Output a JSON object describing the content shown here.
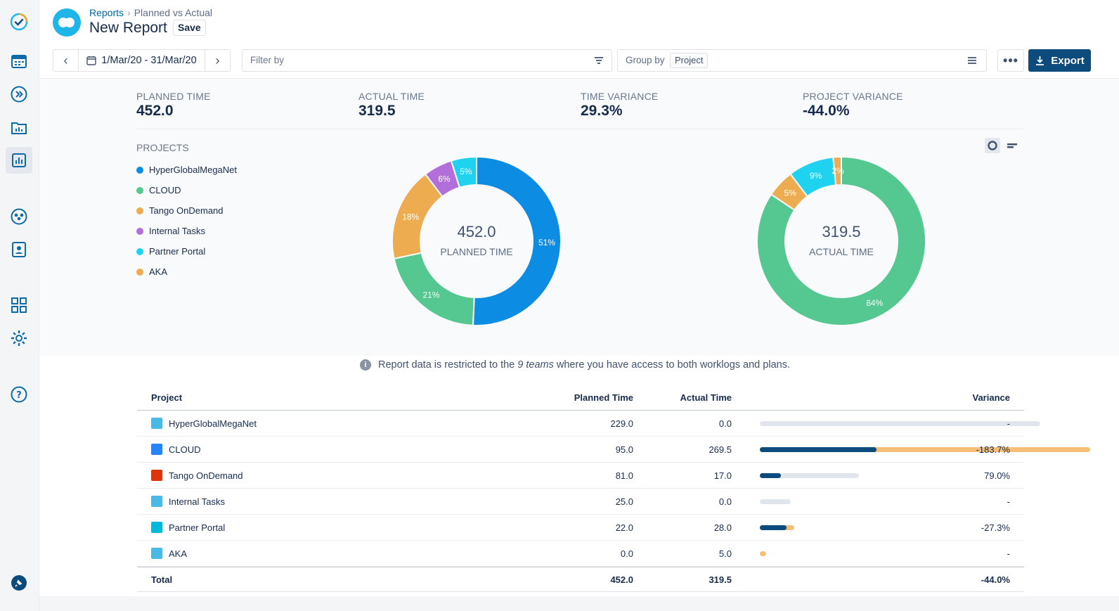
{
  "colors": {
    "accent": "#0c4b7c",
    "blue": "#0c8ce3",
    "green": "#55c891",
    "orange": "#eeac50",
    "purple": "#b36fd9",
    "cyan": "#1fd3f0",
    "bar_track": "#e1e6ed",
    "bar_actual": "#0c4b7c",
    "bar_over": "#f5bf78"
  },
  "sidebar": {
    "items": [
      {
        "icon": "tempo-logo-icon"
      },
      {
        "icon": "calendar-icon"
      },
      {
        "icon": "forward-icon"
      },
      {
        "icon": "folder-chart-icon"
      },
      {
        "icon": "reports-icon"
      },
      {
        "icon": "teams-icon"
      },
      {
        "icon": "contact-icon"
      },
      {
        "icon": "apps-grid-icon"
      },
      {
        "icon": "gear-icon"
      },
      {
        "icon": "help-icon"
      },
      {
        "icon": "pin-icon"
      }
    ]
  },
  "header": {
    "breadcrumb": {
      "parent": "Reports",
      "sep": "›",
      "current": "Planned vs Actual"
    },
    "title": "New Report",
    "save_label": "Save"
  },
  "toolbar": {
    "prev": "‹",
    "next": "›",
    "date_range": "1/Mar/20 - 31/Mar/20",
    "filter_placeholder": "Filter by",
    "group_label": "Group by",
    "group_value": "Project",
    "more": "•••",
    "export_label": "Export"
  },
  "kpis": [
    {
      "label": "Planned Time",
      "value": "452.0"
    },
    {
      "label": "Actual Time",
      "value": "319.5"
    },
    {
      "label": "Time Variance",
      "value": "29.3%"
    },
    {
      "label": "Project Variance",
      "value": "-44.0%"
    }
  ],
  "legend": {
    "title": "PROJECTS",
    "items": [
      {
        "name": "HyperGlobalMegaNet",
        "color": "#0c8ce3"
      },
      {
        "name": "CLOUD",
        "color": "#55c891"
      },
      {
        "name": "Tango OnDemand",
        "color": "#eeac50"
      },
      {
        "name": "Internal Tasks",
        "color": "#b36fd9"
      },
      {
        "name": "Partner Portal",
        "color": "#1fd3f0"
      },
      {
        "name": "AKA",
        "color": "#eeac50"
      }
    ]
  },
  "chart_data": [
    {
      "type": "pie",
      "variant": "donut",
      "center_value": "452.0",
      "center_label": "PLANNED TIME",
      "categories": [
        "HyperGlobalMegaNet",
        "CLOUD",
        "Tango OnDemand",
        "Internal Tasks",
        "Partner Portal",
        "AKA"
      ],
      "values": [
        229.0,
        95.0,
        81.0,
        25.0,
        22.0,
        0.0
      ],
      "labels": [
        "51%",
        "21%",
        "18%",
        "6%",
        "5%",
        ""
      ],
      "colors": [
        "#0c8ce3",
        "#55c891",
        "#eeac50",
        "#b36fd9",
        "#1fd3f0",
        "#eeac50"
      ]
    },
    {
      "type": "pie",
      "variant": "donut",
      "center_value": "319.5",
      "center_label": "ACTUAL TIME",
      "categories": [
        "HyperGlobalMegaNet",
        "CLOUD",
        "Tango OnDemand",
        "Internal Tasks",
        "Partner Portal",
        "AKA"
      ],
      "values": [
        0.0,
        269.5,
        17.0,
        0.0,
        28.0,
        5.0
      ],
      "labels": [
        "",
        "84%",
        "5%",
        "",
        "9%",
        "2%"
      ],
      "colors": [
        "#0c8ce3",
        "#55c891",
        "#eeac50",
        "#b36fd9",
        "#1fd3f0",
        "#eeac50"
      ]
    }
  ],
  "info": {
    "prefix": "Report data is restricted to the ",
    "emphasis": "9 teams",
    "suffix": " where you have access to both worklogs and plans."
  },
  "table": {
    "headers": {
      "project": "Project",
      "planned": "Planned Time",
      "actual": "Actual Time",
      "variance": "Variance"
    },
    "rows": [
      {
        "project": "HyperGlobalMegaNet",
        "planned": "229.0",
        "actual": "0.0",
        "variance": "-",
        "icon_color": "#4bb9e6",
        "planned_n": 229.0,
        "actual_n": 0.0
      },
      {
        "project": "CLOUD",
        "planned": "95.0",
        "actual": "269.5",
        "variance": "-183.7%",
        "icon_color": "#2684ff",
        "planned_n": 95.0,
        "actual_n": 269.5
      },
      {
        "project": "Tango OnDemand",
        "planned": "81.0",
        "actual": "17.0",
        "variance": "79.0%",
        "icon_color": "#de350b",
        "planned_n": 81.0,
        "actual_n": 17.0
      },
      {
        "project": "Internal Tasks",
        "planned": "25.0",
        "actual": "0.0",
        "variance": "-",
        "icon_color": "#4bb9e6",
        "planned_n": 25.0,
        "actual_n": 0.0
      },
      {
        "project": "Partner Portal",
        "planned": "22.0",
        "actual": "28.0",
        "variance": "-27.3%",
        "icon_color": "#00b8d9",
        "planned_n": 22.0,
        "actual_n": 28.0
      },
      {
        "project": "AKA",
        "planned": "0.0",
        "actual": "5.0",
        "variance": "-",
        "icon_color": "#4bb9e6",
        "planned_n": 0.0,
        "actual_n": 5.0
      }
    ],
    "total": {
      "label": "Total",
      "planned": "452.0",
      "actual": "319.5",
      "variance": "-44.0%"
    },
    "bar_max": 269.5
  }
}
